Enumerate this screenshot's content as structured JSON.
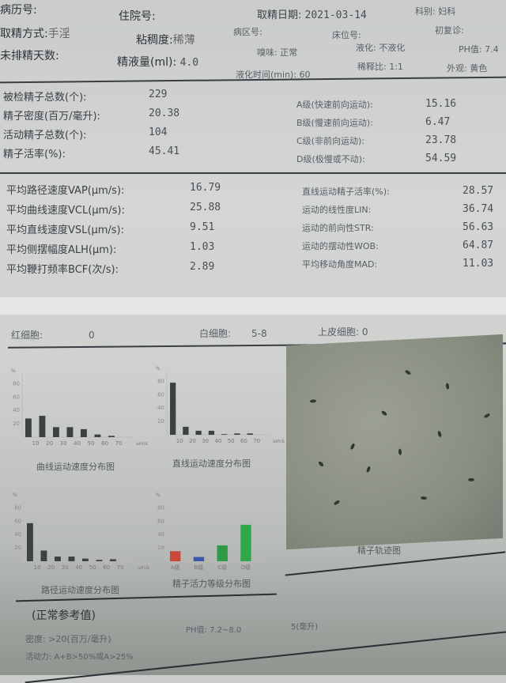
{
  "header": {
    "row1": [
      {
        "label": "病历号:",
        "value": ""
      },
      {
        "label": "住院号:",
        "value": ""
      },
      {
        "label": "取精日期:",
        "value": "2021-03-14"
      },
      {
        "label": "科别:",
        "value": "妇科"
      }
    ],
    "row2": [
      {
        "label": "取精方式:",
        "value": "手淫"
      },
      {
        "label": "粘稠度:",
        "value": "稀薄"
      },
      {
        "label": "病区号:",
        "value": ""
      },
      {
        "label": "床位号:",
        "value": ""
      },
      {
        "label": "初复诊:",
        "value": ""
      }
    ],
    "row3": [
      {
        "label": "未排精天数:",
        "value": ""
      },
      {
        "label": "精液量(ml):",
        "value": "4.0"
      },
      {
        "label": "嗅味:",
        "value": "正常"
      },
      {
        "label": "液化:",
        "value": "不液化"
      },
      {
        "label": "PH值:",
        "value": "7.4"
      }
    ],
    "row4": [
      {
        "label": "液化时间(min):",
        "value": "60"
      },
      {
        "label": "稀释比:",
        "value": "1:1"
      },
      {
        "label": "外观:",
        "value": "黄色"
      }
    ]
  },
  "counts": [
    {
      "label": "被检精子总数(个):",
      "value": "229"
    },
    {
      "label": "精子密度(百万/毫升):",
      "value": "20.38"
    },
    {
      "label": "活动精子总数(个):",
      "value": "104"
    },
    {
      "label": "精子活率(%):",
      "value": "45.41"
    }
  ],
  "grades": [
    {
      "label": "A级(快速前向运动):",
      "value": "15.16"
    },
    {
      "label": "B级(慢速前向运动):",
      "value": "6.47"
    },
    {
      "label": "C级(非前向运动):",
      "value": "23.78"
    },
    {
      "label": "D级(极慢或不动):",
      "value": "54.59"
    }
  ],
  "velocity": [
    {
      "label": "平均路径速度VAP(μm/s):",
      "value": "16.79"
    },
    {
      "label": "平均曲线速度VCL(μm/s):",
      "value": "25.88"
    },
    {
      "label": "平均直线速度VSL(μm/s):",
      "value": "9.51"
    },
    {
      "label": "平均侧摆幅度ALH(μm):",
      "value": "1.03"
    },
    {
      "label": "平均鞭打频率BCF(次/s):",
      "value": "2.89"
    }
  ],
  "kinematics": [
    {
      "label": "直线运动精子活率(%):",
      "value": "28.57"
    },
    {
      "label": "运动的线性度LIN:",
      "value": "36.74"
    },
    {
      "label": "运动的前向性STR:",
      "value": "56.63"
    },
    {
      "label": "运动的摆动性WOB:",
      "value": "64.87"
    },
    {
      "label": "平均移动角度MAD:",
      "value": "11.03"
    }
  ],
  "cells": [
    {
      "label": "红细胞:",
      "value": "0"
    },
    {
      "label": "白细胞:",
      "value": "5-8"
    },
    {
      "label": "上皮细胞:",
      "value": "0"
    }
  ],
  "chart_data": [
    {
      "type": "bar",
      "title": "曲线运动速度分布图",
      "ylabel": "%",
      "xlabel": "um/s",
      "ylim": [
        0,
        90
      ],
      "yticks": [
        "20",
        "40",
        "60",
        "80"
      ],
      "categories": [
        "10",
        "20",
        "30",
        "40",
        "50",
        "60",
        "70"
      ],
      "values": [
        28,
        32,
        15,
        15,
        12,
        4,
        2
      ],
      "colors": [
        "#3c4240"
      ]
    },
    {
      "type": "bar",
      "title": "直线运动速度分布图",
      "ylabel": "%",
      "xlabel": "um/s",
      "ylim": [
        0,
        90
      ],
      "yticks": [
        "20",
        "40",
        "60",
        "80"
      ],
      "categories": [
        "10",
        "20",
        "30",
        "40",
        "50",
        "60",
        "70"
      ],
      "values": [
        78,
        12,
        6,
        6,
        1,
        2,
        2
      ],
      "colors": [
        "#3c4240"
      ]
    },
    {
      "type": "bar",
      "title": "路径运动速度分布图",
      "ylabel": "%",
      "xlabel": "um/s",
      "ylim": [
        0,
        90
      ],
      "yticks": [
        "20",
        "40",
        "60",
        "80"
      ],
      "categories": [
        "10",
        "20",
        "30",
        "40",
        "50",
        "60",
        "70"
      ],
      "values": [
        57,
        16,
        7,
        7,
        4,
        2,
        3
      ],
      "colors": [
        "#3c4240"
      ]
    },
    {
      "type": "bar",
      "title": "精子活力等级分布图",
      "ylabel": "%",
      "xlabel": "",
      "ylim": [
        0,
        90
      ],
      "yticks": [
        "20",
        "40",
        "60",
        "80"
      ],
      "categories": [
        "A级",
        "B级",
        "C级",
        "D级"
      ],
      "values": [
        15.16,
        6.47,
        23.78,
        54.59
      ],
      "colors": [
        "#c9483a",
        "#3a57a8",
        "#2f9a45",
        "#2fa84a"
      ]
    }
  ],
  "micrograph": {
    "caption": "精子轨迹图"
  },
  "reference": {
    "title": "(正常参考值)",
    "density": "密度: >20(百万/毫升)",
    "motility": "活动力: A+B>50%或A>25%",
    "ph": "PH值: 7.2~8.0",
    "volume_suffix": "5(毫升)"
  }
}
